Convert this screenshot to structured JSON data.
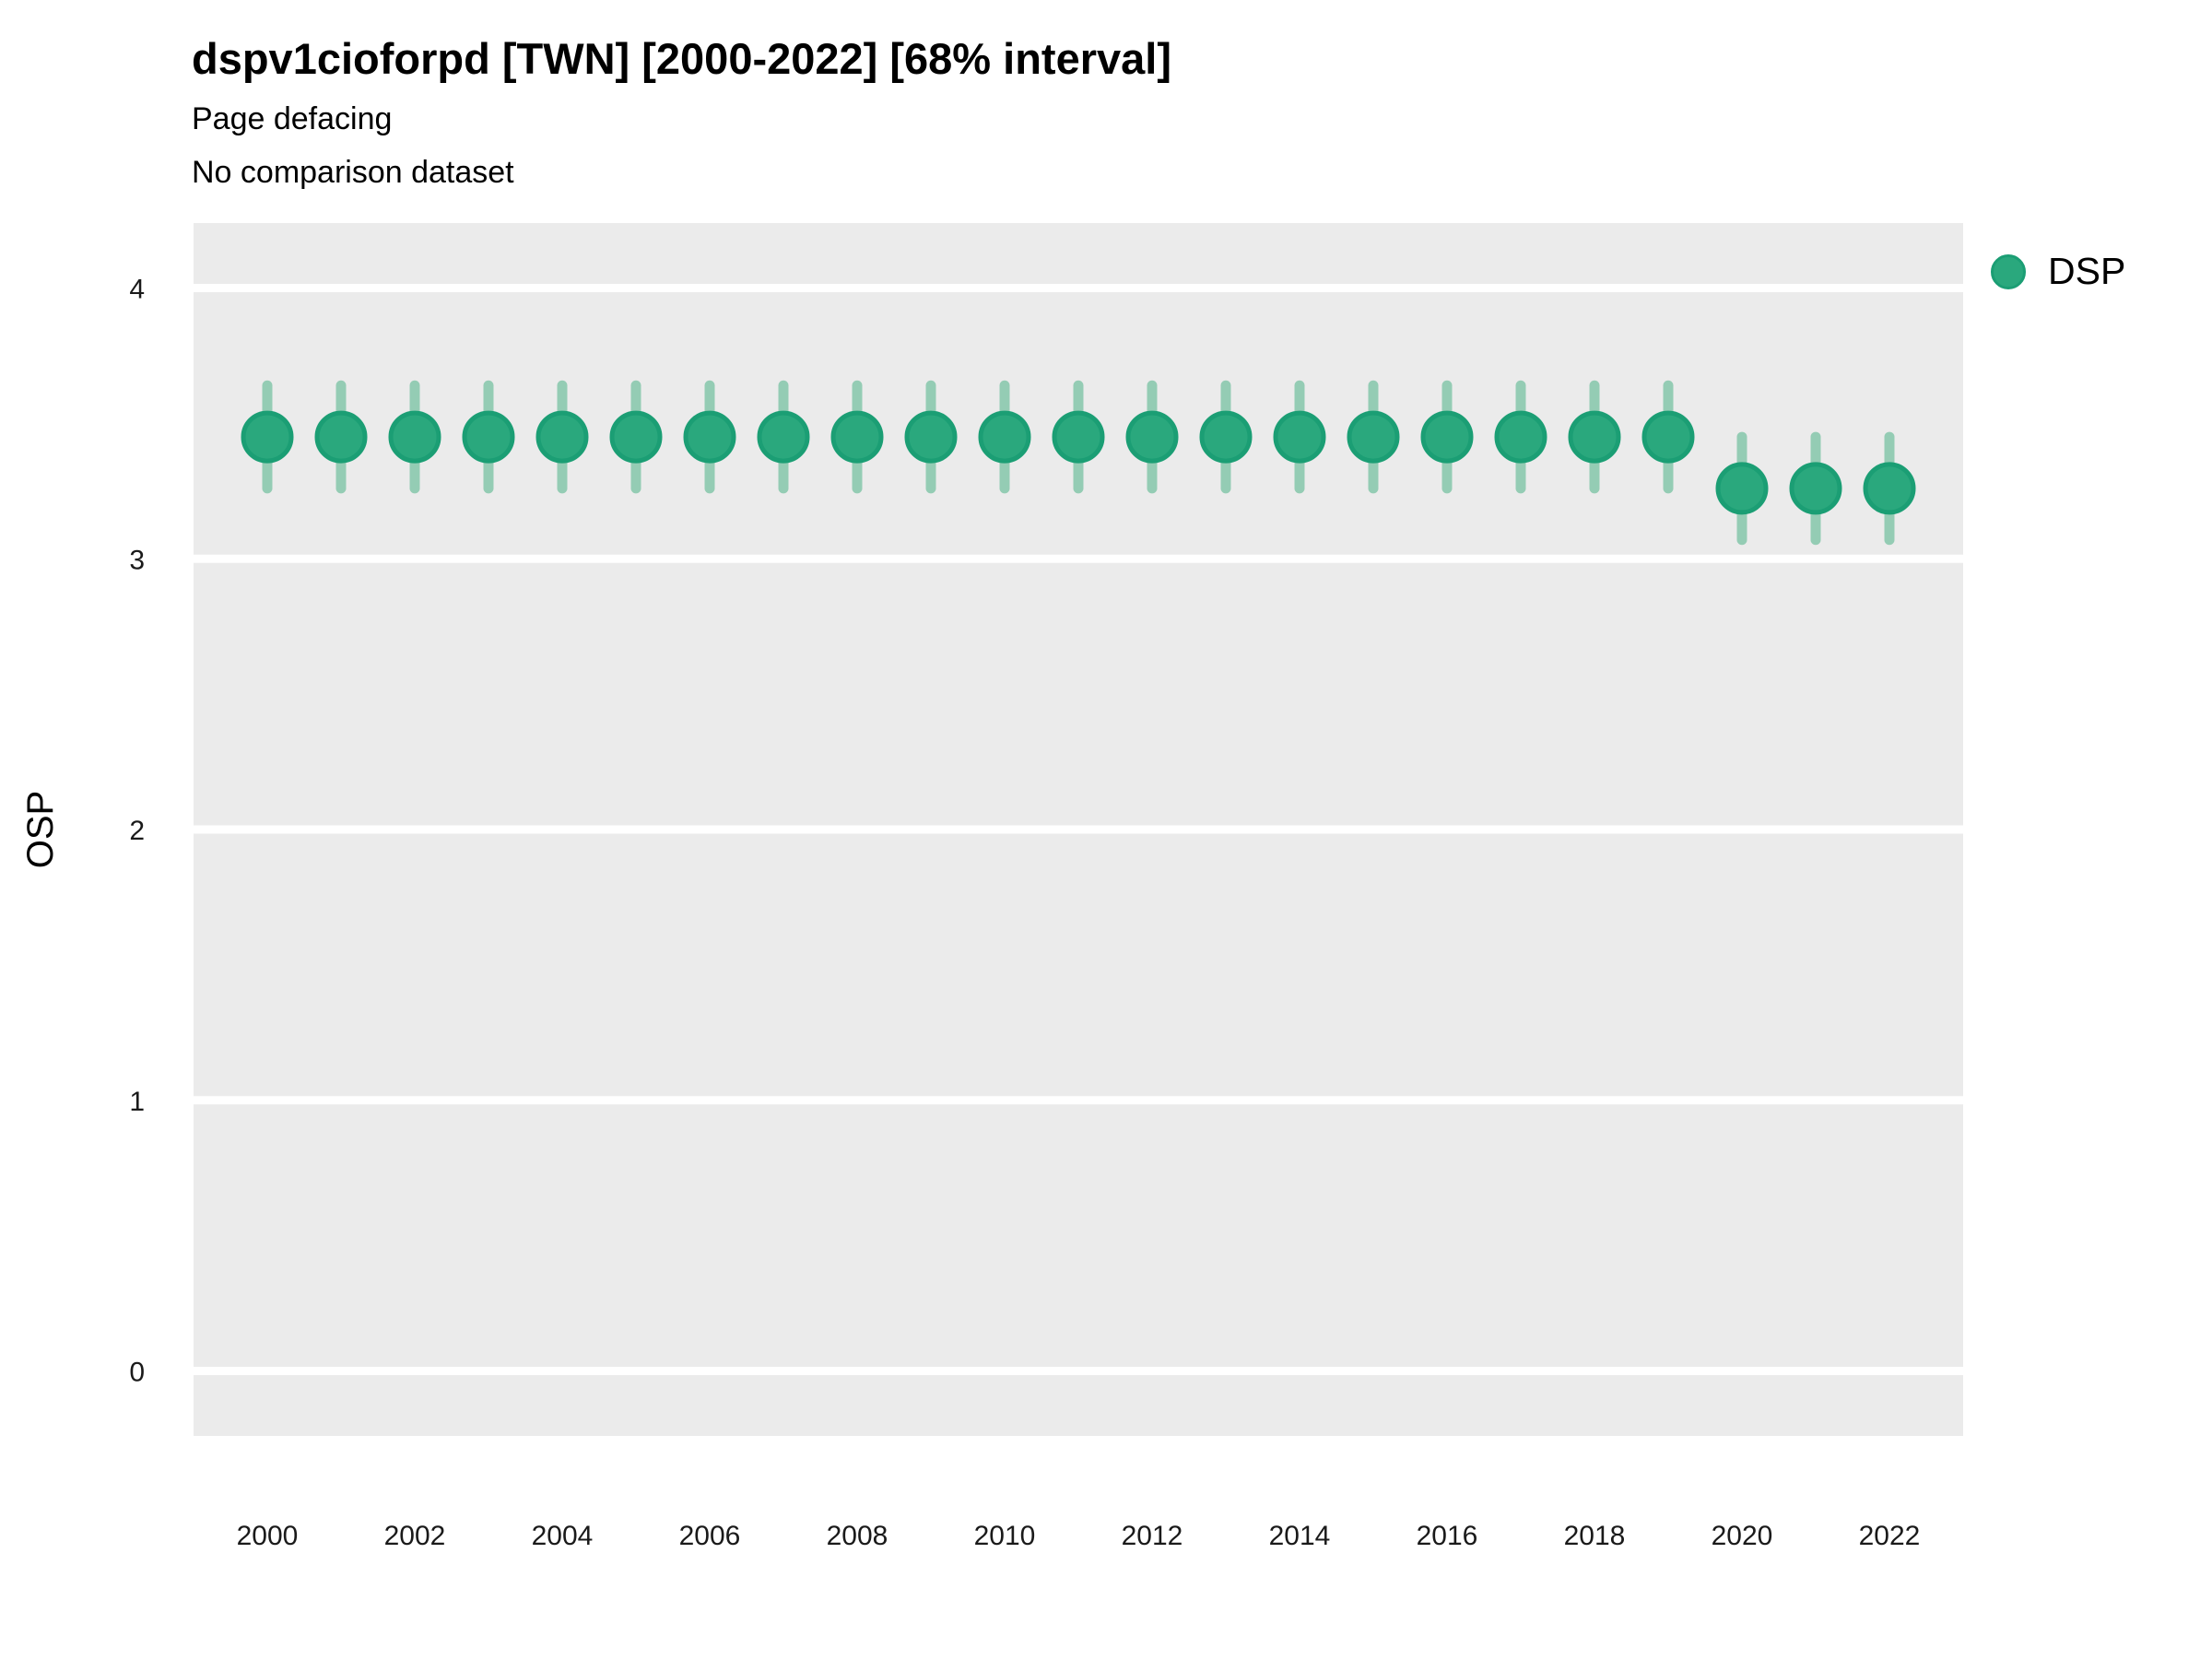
{
  "header": {
    "title": "dspv1cioforpd [TWN] [2000-2022] [68% interval]",
    "subtitle_line1": "Page defacing",
    "subtitle_line2": "No comparison dataset"
  },
  "legend": {
    "items": [
      {
        "label": "DSP",
        "color": "#2aa87d",
        "border": "#1b9e74"
      }
    ]
  },
  "axes": {
    "y_title": "OSP",
    "x_tick_labels": [
      "2000",
      "2002",
      "2004",
      "2006",
      "2008",
      "2010",
      "2012",
      "2014",
      "2016",
      "2018",
      "2020",
      "2022"
    ],
    "y_tick_labels": [
      "0",
      "1",
      "2",
      "3",
      "4"
    ]
  },
  "chart_data": {
    "type": "scatter",
    "title": "dspv1cioforpd [TWN] [2000-2022] [68% interval]",
    "subtitle": [
      "Page defacing",
      "No comparison dataset"
    ],
    "interval_label": "68% interval",
    "xlabel": "",
    "ylabel": "OSP",
    "legend_position": "right",
    "grid": "horizontal-major-only",
    "xlim": [
      1999,
      2023
    ],
    "ylim": [
      -0.24,
      4.24
    ],
    "x_ticks": [
      2000,
      2002,
      2004,
      2006,
      2008,
      2010,
      2012,
      2014,
      2016,
      2018,
      2020,
      2022
    ],
    "y_ticks": [
      0,
      1,
      2,
      3,
      4
    ],
    "series": [
      {
        "name": "DSP",
        "points": [
          {
            "x": 2000,
            "y": 3.45,
            "lo": 3.26,
            "hi": 3.64
          },
          {
            "x": 2001,
            "y": 3.45,
            "lo": 3.26,
            "hi": 3.64
          },
          {
            "x": 2002,
            "y": 3.45,
            "lo": 3.26,
            "hi": 3.64
          },
          {
            "x": 2003,
            "y": 3.45,
            "lo": 3.26,
            "hi": 3.64
          },
          {
            "x": 2004,
            "y": 3.45,
            "lo": 3.26,
            "hi": 3.64
          },
          {
            "x": 2005,
            "y": 3.45,
            "lo": 3.26,
            "hi": 3.64
          },
          {
            "x": 2006,
            "y": 3.45,
            "lo": 3.26,
            "hi": 3.64
          },
          {
            "x": 2007,
            "y": 3.45,
            "lo": 3.26,
            "hi": 3.64
          },
          {
            "x": 2008,
            "y": 3.45,
            "lo": 3.26,
            "hi": 3.64
          },
          {
            "x": 2009,
            "y": 3.45,
            "lo": 3.26,
            "hi": 3.64
          },
          {
            "x": 2010,
            "y": 3.45,
            "lo": 3.26,
            "hi": 3.64
          },
          {
            "x": 2011,
            "y": 3.45,
            "lo": 3.26,
            "hi": 3.64
          },
          {
            "x": 2012,
            "y": 3.45,
            "lo": 3.26,
            "hi": 3.64
          },
          {
            "x": 2013,
            "y": 3.45,
            "lo": 3.26,
            "hi": 3.64
          },
          {
            "x": 2014,
            "y": 3.45,
            "lo": 3.26,
            "hi": 3.64
          },
          {
            "x": 2015,
            "y": 3.45,
            "lo": 3.26,
            "hi": 3.64
          },
          {
            "x": 2016,
            "y": 3.45,
            "lo": 3.26,
            "hi": 3.64
          },
          {
            "x": 2017,
            "y": 3.45,
            "lo": 3.26,
            "hi": 3.64
          },
          {
            "x": 2018,
            "y": 3.45,
            "lo": 3.26,
            "hi": 3.64
          },
          {
            "x": 2019,
            "y": 3.45,
            "lo": 3.26,
            "hi": 3.64
          },
          {
            "x": 2020,
            "y": 3.26,
            "lo": 3.07,
            "hi": 3.45
          },
          {
            "x": 2021,
            "y": 3.26,
            "lo": 3.07,
            "hi": 3.45
          },
          {
            "x": 2022,
            "y": 3.26,
            "lo": 3.07,
            "hi": 3.45
          }
        ]
      }
    ],
    "colors": {
      "point_fill": "#2aa87d",
      "point_stroke": "#1b9e74",
      "error_bar": "#94ccb4",
      "panel_bg": "#ebebeb",
      "gridline": "#ffffff",
      "tick_text": "#1a1a1a"
    }
  }
}
